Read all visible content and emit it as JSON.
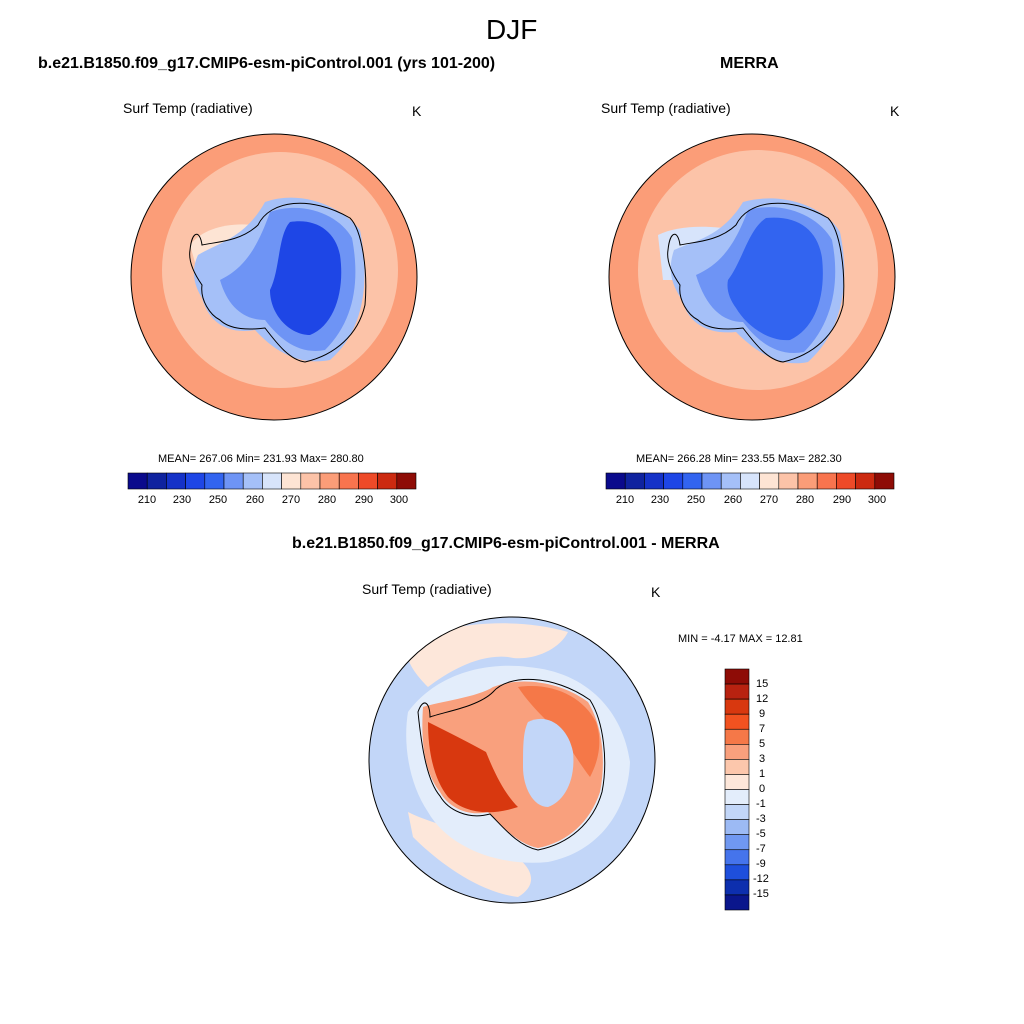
{
  "figure": {
    "season": "DJF"
  },
  "panels": {
    "model": {
      "title": "b.e21.B1850.f09_g17.CMIP6-esm-piControl.001 (yrs 101-200)",
      "variable": "Surf Temp (radiative)",
      "units": "K",
      "stats": "MEAN= 267.06  Min= 231.93  Max= 280.80"
    },
    "obs": {
      "title": "MERRA",
      "variable": "Surf Temp (radiative)",
      "units": "K",
      "stats": "MEAN= 266.28  Min= 233.55  Max= 282.30"
    },
    "diff": {
      "title": "b.e21.B1850.f09_g17.CMIP6-esm-piControl.001 - MERRA",
      "variable": "Surf Temp (radiative)",
      "units": "K",
      "stats": "MIN =  -4.17 MAX =  12.81"
    }
  },
  "colorbars": {
    "absolute": {
      "tick_labels": [
        "210",
        "230",
        "250",
        "260",
        "270",
        "280",
        "290",
        "300"
      ],
      "colors": [
        "#0a0a8c",
        "#0f239f",
        "#1532c8",
        "#1e46e6",
        "#3264f0",
        "#6e94f5",
        "#a5c0f8",
        "#d7e4fb",
        "#fde4d4",
        "#fcc3a8",
        "#fb9d78",
        "#f8744e",
        "#ee4a28",
        "#cc2a10",
        "#8e0c06"
      ]
    },
    "difference": {
      "tick_labels": [
        "15",
        "12",
        "9",
        "7",
        "5",
        "3",
        "1",
        "0",
        "-1",
        "-3",
        "-5",
        "-7",
        "-9",
        "-12",
        "-15"
      ],
      "colors": [
        "#8e0c06",
        "#b82210",
        "#d8380f",
        "#f25220",
        "#f57848",
        "#f9a07d",
        "#fcc7ac",
        "#fde7da",
        "#e3edfb",
        "#c2d6f8",
        "#9cbaf4",
        "#7098f1",
        "#4574ec",
        "#1e4fdc",
        "#0d2fae",
        "#0a168c"
      ]
    }
  }
}
